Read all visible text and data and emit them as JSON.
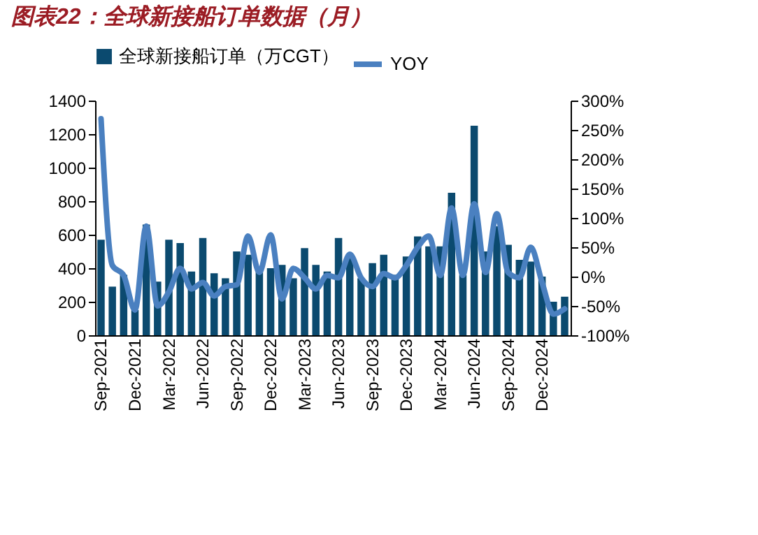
{
  "chart_data": {
    "type": "bar",
    "title": "图表22：全球新接船订单数据（月）",
    "categories": [
      "Sep-2021",
      null,
      null,
      "Dec-2021",
      null,
      null,
      "Mar-2022",
      null,
      null,
      "Jun-2022",
      null,
      null,
      "Sep-2022",
      null,
      null,
      "Dec-2022",
      null,
      null,
      "Mar-2023",
      null,
      null,
      "Jun-2023",
      null,
      null,
      "Sep-2023",
      null,
      null,
      "Dec-2023",
      null,
      null,
      "Mar-2024",
      null,
      null,
      "Jun-2024",
      null,
      null,
      "Sep-2024",
      null,
      null,
      "Dec-2024",
      null,
      null
    ],
    "series": [
      {
        "name": "全球新接船订单（万CGT）",
        "color": "#0b4a6f",
        "values": [
          570,
          290,
          360,
          150,
          660,
          320,
          570,
          550,
          380,
          580,
          370,
          340,
          500,
          480,
          400,
          400,
          420,
          340,
          520,
          420,
          380,
          580,
          460,
          340,
          430,
          480,
          360,
          470,
          590,
          530,
          530,
          850,
          360,
          1250,
          500,
          650,
          540,
          450,
          440,
          350,
          200,
          230
        ]
      },
      {
        "name": "YOY",
        "type": "line",
        "axis": "y2",
        "color": "#4a80c0",
        "values": [
          269,
          19,
          2,
          -57,
          86,
          -50,
          -26,
          14,
          -21,
          -10,
          -33,
          -17,
          -14,
          69,
          7,
          71,
          -38,
          14,
          -2,
          -21,
          2,
          -2,
          38,
          -2,
          -17,
          5,
          -2,
          19,
          50,
          69,
          2,
          117,
          2,
          124,
          7,
          107,
          7,
          -2,
          50,
          -10,
          -64,
          -55
        ]
      }
    ],
    "ylim": [
      0,
      1400
    ],
    "yticks": [
      0,
      200,
      400,
      600,
      800,
      1000,
      1200,
      1400
    ],
    "y2lim": [
      -100,
      300
    ],
    "y2ticks": [
      {
        "value": -100,
        "label": "-100%"
      },
      {
        "value": -50,
        "label": "-50%"
      },
      {
        "value": 0,
        "label": "0%"
      },
      {
        "value": 50,
        "label": "50%"
      },
      {
        "value": 100,
        "label": "100%"
      },
      {
        "value": 150,
        "label": "150%"
      },
      {
        "value": 200,
        "label": "200%"
      },
      {
        "value": 250,
        "label": "250%"
      },
      {
        "value": 300,
        "label": "300%"
      }
    ],
    "legend": "top",
    "grid": false
  }
}
